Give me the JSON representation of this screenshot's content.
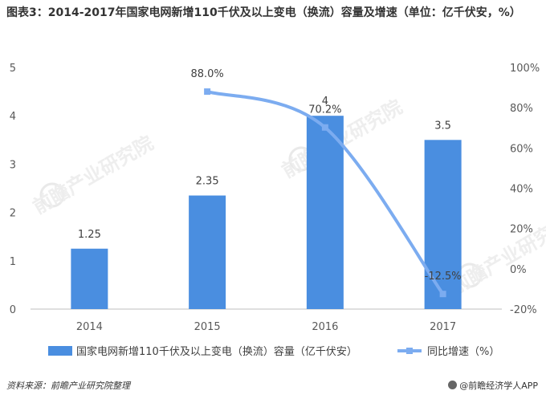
{
  "title": "图表3：2014-2017年国家电网新增110千伏及以上变电（换流）容量及增速（单位：亿千伏安，%）",
  "source": "资料来源：前瞻产业研究院整理",
  "brand": "@前瞻经济学人APP",
  "watermark": "前瞻产业研究院",
  "colors": {
    "bar": "#4a8ee0",
    "line": "#7cacf0",
    "axis": "#bfbfbf",
    "text": "#595959"
  },
  "chart_data": {
    "type": "bar",
    "categories": [
      "2014",
      "2015",
      "2016",
      "2017"
    ],
    "series": [
      {
        "name": "国家电网新增110千伏及以上变电（换流）容量（亿千伏安）",
        "type": "bar",
        "axis": "left",
        "values": [
          1.25,
          2.35,
          4,
          3.5
        ],
        "labels": [
          "1.25",
          "2.35",
          "4",
          "3.5"
        ]
      },
      {
        "name": "同比增速（%）",
        "type": "line",
        "axis": "right",
        "values": [
          null,
          88.0,
          70.2,
          -12.5
        ],
        "labels": [
          "",
          "88.0%",
          "70.2%",
          "-12.5%"
        ]
      }
    ],
    "y_left": {
      "min": 0,
      "max": 5,
      "ticks": [
        "0",
        "1",
        "2",
        "3",
        "4",
        "5"
      ]
    },
    "y_right": {
      "min": -20,
      "max": 100,
      "ticks": [
        "-20%",
        "0%",
        "20%",
        "40%",
        "60%",
        "80%",
        "100%"
      ]
    },
    "grid": false,
    "legend": "bottom"
  }
}
